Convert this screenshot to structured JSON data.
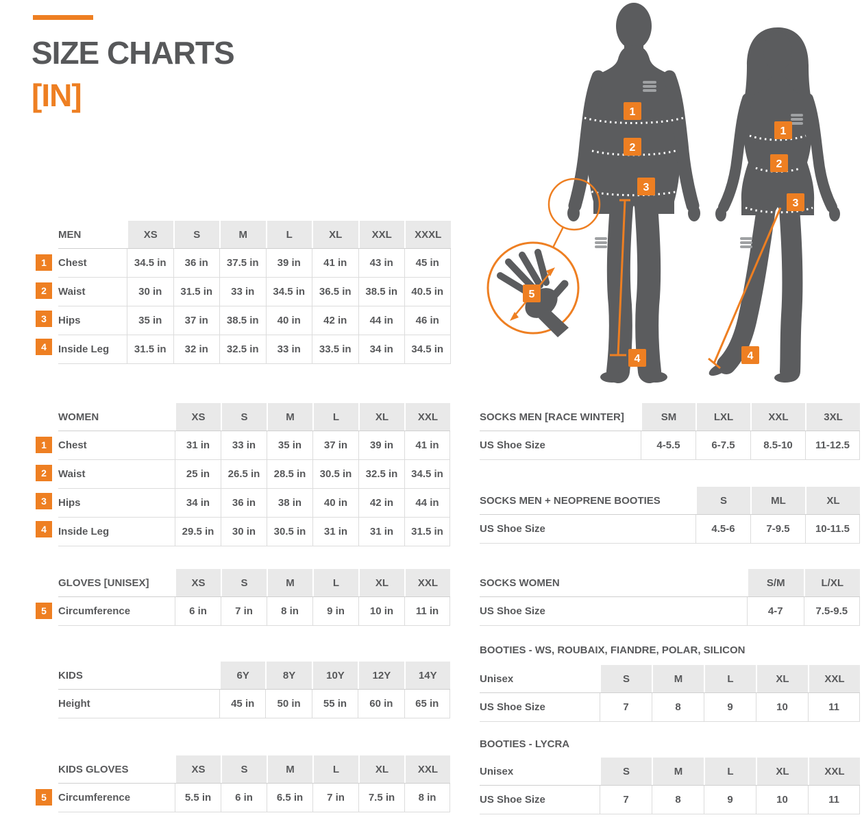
{
  "page": {
    "title": "SIZE CHARTS",
    "subtitle": "[IN]"
  },
  "colors": {
    "accent": "#EE7F22",
    "text": "#58595B",
    "header_bg": "#E9E9E9",
    "silhouette": "#5B5C5E"
  },
  "figure": {
    "markers": {
      "chest": "1",
      "waist": "2",
      "hips": "3",
      "inside_leg": "4",
      "hand_circumference": "5"
    }
  },
  "chart_data": [
    {
      "type": "table",
      "title": "MEN",
      "categories": [
        "XS",
        "S",
        "M",
        "L",
        "XL",
        "XXL",
        "XXXL"
      ],
      "series": [
        {
          "name": "Chest",
          "values": [
            "34.5 in",
            "36 in",
            "37.5 in",
            "39 in",
            "41 in",
            "43 in",
            "45 in"
          ]
        },
        {
          "name": "Waist",
          "values": [
            "30 in",
            "31.5 in",
            "33 in",
            "34.5 in",
            "36.5 in",
            "38.5 in",
            "40.5 in"
          ]
        },
        {
          "name": "Hips",
          "values": [
            "35 in",
            "37 in",
            "38.5 in",
            "40 in",
            "42 in",
            "44 in",
            "46 in"
          ]
        },
        {
          "name": "Inside Leg",
          "values": [
            "31.5 in",
            "32 in",
            "32.5 in",
            "33 in",
            "33.5 in",
            "34 in",
            "34.5 in"
          ]
        }
      ]
    },
    {
      "type": "table",
      "title": "WOMEN",
      "categories": [
        "XS",
        "S",
        "M",
        "L",
        "XL",
        "XXL"
      ],
      "series": [
        {
          "name": "Chest",
          "values": [
            "31 in",
            "33 in",
            "35 in",
            "37 in",
            "39 in",
            "41 in"
          ]
        },
        {
          "name": "Waist",
          "values": [
            "25 in",
            "26.5 in",
            "28.5 in",
            "30.5 in",
            "32.5 in",
            "34.5 in"
          ]
        },
        {
          "name": "Hips",
          "values": [
            "34 in",
            "36 in",
            "38 in",
            "40 in",
            "42 in",
            "44 in"
          ]
        },
        {
          "name": "Inside Leg",
          "values": [
            "29.5 in",
            "30 in",
            "30.5 in",
            "31 in",
            "31 in",
            "31.5 in"
          ]
        }
      ]
    },
    {
      "type": "table",
      "title": "GLOVES [UNISEX]",
      "categories": [
        "XS",
        "S",
        "M",
        "L",
        "XL",
        "XXL"
      ],
      "series": [
        {
          "name": "Circumference",
          "values": [
            "6 in",
            "7 in",
            "8 in",
            "9 in",
            "10 in",
            "11 in"
          ]
        }
      ]
    },
    {
      "type": "table",
      "title": "KIDS",
      "categories": [
        "6Y",
        "8Y",
        "10Y",
        "12Y",
        "14Y"
      ],
      "series": [
        {
          "name": "Height",
          "values": [
            "45 in",
            "50 in",
            "55 in",
            "60 in",
            "65 in"
          ]
        }
      ]
    },
    {
      "type": "table",
      "title": "KIDS GLOVES",
      "categories": [
        "XS",
        "S",
        "M",
        "L",
        "XL",
        "XXL"
      ],
      "series": [
        {
          "name": "Circumference",
          "values": [
            "5.5 in",
            "6 in",
            "6.5 in",
            "7 in",
            "7.5 in",
            "8 in"
          ]
        }
      ]
    },
    {
      "type": "table",
      "title": "SOCKS MEN [RACE WINTER]",
      "categories": [
        "SM",
        "LXL",
        "XXL",
        "3XL"
      ],
      "series": [
        {
          "name": "US Shoe Size",
          "values": [
            "4-5.5",
            "6-7.5",
            "8.5-10",
            "11-12.5"
          ]
        }
      ]
    },
    {
      "type": "table",
      "title": "SOCKS MEN + NEOPRENE BOOTIES",
      "categories": [
        "S",
        "ML",
        "XL"
      ],
      "series": [
        {
          "name": "US Shoe Size",
          "values": [
            "4.5-6",
            "7-9.5",
            "10-11.5"
          ]
        }
      ]
    },
    {
      "type": "table",
      "title": "SOCKS WOMEN",
      "categories": [
        "S/M",
        "L/XL"
      ],
      "series": [
        {
          "name": "US Shoe Size",
          "values": [
            "4-7",
            "7.5-9.5"
          ]
        }
      ]
    },
    {
      "type": "table",
      "title": "BOOTIES - WS, ROUBAIX, FIANDRE, POLAR, SILICON",
      "categories": [
        "S",
        "M",
        "L",
        "XL",
        "XXL"
      ],
      "series": [
        {
          "name": "US Shoe Size",
          "values": [
            "7",
            "8",
            "9",
            "10",
            "11"
          ]
        }
      ]
    },
    {
      "type": "table",
      "title": "BOOTIES - LYCRA",
      "categories": [
        "S",
        "M",
        "L",
        "XL",
        "XXL"
      ],
      "series": [
        {
          "name": "US Shoe Size",
          "values": [
            "7",
            "8",
            "9",
            "10",
            "11"
          ]
        }
      ]
    }
  ],
  "tables": [
    {
      "key": "men",
      "name": "MEN",
      "columns": [
        "XS",
        "S",
        "M",
        "L",
        "XL",
        "XXL",
        "XXXL"
      ],
      "rows": [
        {
          "badge": "1",
          "label": "Chest",
          "values": [
            "34.5 in",
            "36 in",
            "37.5 in",
            "39 in",
            "41 in",
            "43 in",
            "45 in"
          ]
        },
        {
          "badge": "2",
          "label": "Waist",
          "values": [
            "30 in",
            "31.5 in",
            "33 in",
            "34.5 in",
            "36.5 in",
            "38.5 in",
            "40.5 in"
          ]
        },
        {
          "badge": "3",
          "label": "Hips",
          "values": [
            "35 in",
            "37 in",
            "38.5 in",
            "40 in",
            "42 in",
            "44 in",
            "46 in"
          ]
        },
        {
          "badge": "4",
          "label": "Inside Leg",
          "values": [
            "31.5 in",
            "32 in",
            "32.5 in",
            "33 in",
            "33.5 in",
            "34 in",
            "34.5 in"
          ]
        }
      ]
    },
    {
      "key": "women",
      "name": "WOMEN",
      "columns": [
        "XS",
        "S",
        "M",
        "L",
        "XL",
        "XXL"
      ],
      "rows": [
        {
          "badge": "1",
          "label": "Chest",
          "values": [
            "31 in",
            "33 in",
            "35 in",
            "37 in",
            "39 in",
            "41 in"
          ]
        },
        {
          "badge": "2",
          "label": "Waist",
          "values": [
            "25 in",
            "26.5 in",
            "28.5 in",
            "30.5 in",
            "32.5 in",
            "34.5 in"
          ]
        },
        {
          "badge": "3",
          "label": "Hips",
          "values": [
            "34 in",
            "36 in",
            "38 in",
            "40 in",
            "42 in",
            "44 in"
          ]
        },
        {
          "badge": "4",
          "label": "Inside Leg",
          "values": [
            "29.5 in",
            "30 in",
            "30.5 in",
            "31 in",
            "31 in",
            "31.5 in"
          ]
        }
      ]
    },
    {
      "key": "gloves",
      "name": "GLOVES [UNISEX]",
      "columns": [
        "XS",
        "S",
        "M",
        "L",
        "XL",
        "XXL"
      ],
      "rows": [
        {
          "badge": "5",
          "label": "Circumference",
          "values": [
            "6 in",
            "7 in",
            "8 in",
            "9 in",
            "10 in",
            "11 in"
          ]
        }
      ]
    },
    {
      "key": "kids",
      "name": "KIDS",
      "columns": [
        "6Y",
        "8Y",
        "10Y",
        "12Y",
        "14Y"
      ],
      "rows": [
        {
          "badge": null,
          "label": "Height",
          "values": [
            "45 in",
            "50 in",
            "55 in",
            "60 in",
            "65 in"
          ]
        }
      ]
    },
    {
      "key": "kids_gloves",
      "name": "KIDS GLOVES",
      "columns": [
        "XS",
        "S",
        "M",
        "L",
        "XL",
        "XXL"
      ],
      "rows": [
        {
          "badge": "5",
          "label": "Circumference",
          "values": [
            "5.5 in",
            "6 in",
            "6.5 in",
            "7 in",
            "7.5 in",
            "8 in"
          ]
        }
      ]
    },
    {
      "key": "socks_race",
      "name": "SOCKS MEN [RACE WINTER]",
      "columns": [
        "SM",
        "LXL",
        "XXL",
        "3XL"
      ],
      "rows": [
        {
          "badge": null,
          "label": "US Shoe Size",
          "values": [
            "4-5.5",
            "6-7.5",
            "8.5-10",
            "11-12.5"
          ]
        }
      ]
    },
    {
      "key": "socks_neo",
      "name": "SOCKS MEN + NEOPRENE BOOTIES",
      "columns": [
        "S",
        "ML",
        "XL"
      ],
      "rows": [
        {
          "badge": null,
          "label": "US Shoe Size",
          "values": [
            "4.5-6",
            "7-9.5",
            "10-11.5"
          ]
        }
      ]
    },
    {
      "key": "socks_women",
      "name": "SOCKS WOMEN",
      "columns": [
        "S/M",
        "L/XL"
      ],
      "rows": [
        {
          "badge": null,
          "label": "US Shoe Size",
          "values": [
            "4-7",
            "7.5-9.5"
          ]
        }
      ]
    },
    {
      "key": "booties_ws",
      "name": "Unisex",
      "section_title": "BOOTIES - WS, ROUBAIX, FIANDRE, POLAR, SILICON",
      "columns": [
        "S",
        "M",
        "L",
        "XL",
        "XXL"
      ],
      "rows": [
        {
          "badge": null,
          "label": "US Shoe Size",
          "values": [
            "7",
            "8",
            "9",
            "10",
            "11"
          ]
        }
      ]
    },
    {
      "key": "booties_lycra",
      "name": "Unisex",
      "section_title": "BOOTIES - LYCRA",
      "columns": [
        "S",
        "M",
        "L",
        "XL",
        "XXL"
      ],
      "rows": [
        {
          "badge": null,
          "label": "US Shoe Size",
          "values": [
            "7",
            "8",
            "9",
            "10",
            "11"
          ]
        }
      ]
    }
  ]
}
